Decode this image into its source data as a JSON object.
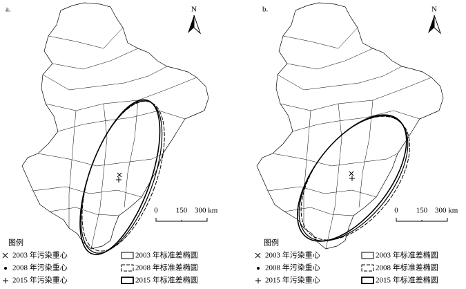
{
  "panels": [
    {
      "label": "a.",
      "north": "N",
      "scale": [
        "0",
        "150",
        "300 km"
      ],
      "legend": {
        "title": "图例",
        "items": [
          "2003 年污染重心",
          "2008 年污染重心",
          "2015 年污染重心",
          "2003 年标准差椭圆",
          "2008 年标准差椭圆",
          "2015 年标准差椭圆"
        ]
      }
    },
    {
      "label": "b.",
      "north": "N",
      "scale": [
        "0",
        "150",
        "300 km"
      ],
      "legend": {
        "title": "图例",
        "items": [
          "2003 年污染重心",
          "2008 年污染重心",
          "2015 年污染重心",
          "2003 年标准差椭圆",
          "2008 年标准差椭圆",
          "2015 年标准差椭圆"
        ]
      }
    }
  ]
}
